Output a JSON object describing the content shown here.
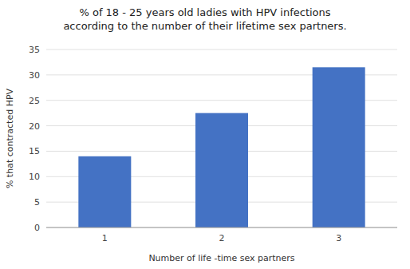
{
  "chart_data": {
    "type": "bar",
    "title": "% of 18 - 25 years old ladies with HPV infections\naccording to the number of their lifetime sex partners.",
    "xlabel": "Number of life -time sex partners",
    "ylabel": "% that contracted HPV",
    "categories": [
      "1",
      "2",
      "3"
    ],
    "values": [
      14,
      22.5,
      31.5
    ],
    "color": "#4472C4",
    "ylim": [
      0,
      35
    ],
    "yticks": [
      0,
      5,
      10,
      15,
      20,
      25,
      30,
      35
    ],
    "grid": true
  }
}
